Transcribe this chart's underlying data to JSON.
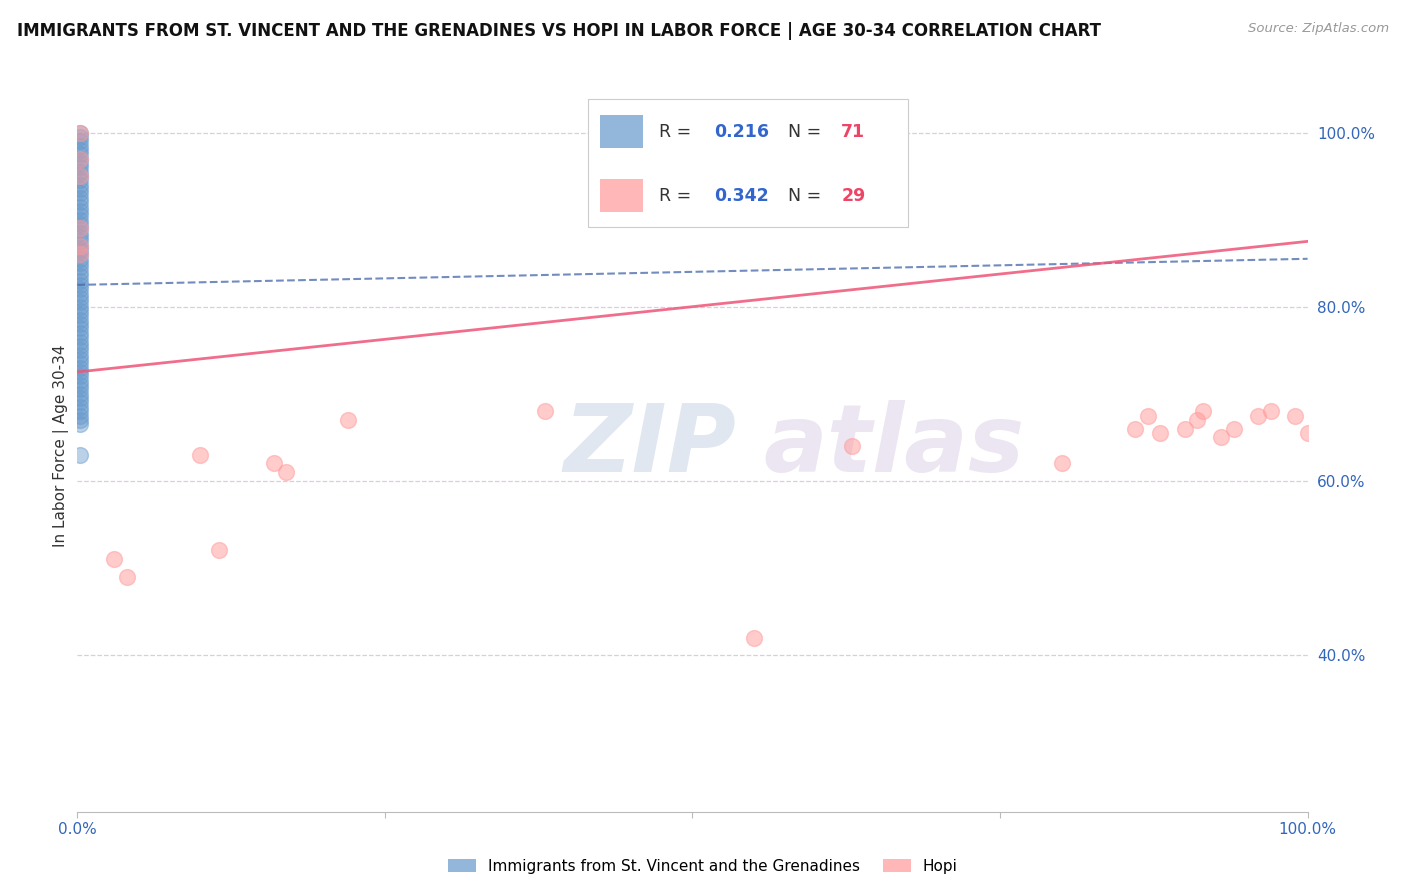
{
  "title": "IMMIGRANTS FROM ST. VINCENT AND THE GRENADINES VS HOPI IN LABOR FORCE | AGE 30-34 CORRELATION CHART",
  "source_text": "Source: ZipAtlas.com",
  "ylabel": "In Labor Force | Age 30-34",
  "xlim": [
    0.0,
    1.0
  ],
  "ylim": [
    0.22,
    1.06
  ],
  "blue_color": "#6699CC",
  "pink_color": "#FF9999",
  "blue_line_color": "#4466AA",
  "pink_line_color": "#EE5577",
  "title_color": "#111111",
  "source_color": "#999999",
  "r_value_color": "#3366CC",
  "n_value_color": "#EE4466",
  "watermark_color_zip": "#AABBDD",
  "watermark_color_atlas": "#CCBBDD",
  "grid_color": "#DDCCDD",
  "blue_scatter_x": [
    0.002,
    0.002,
    0.002,
    0.002,
    0.002,
    0.002,
    0.002,
    0.002,
    0.002,
    0.002,
    0.002,
    0.002,
    0.002,
    0.002,
    0.002,
    0.002,
    0.002,
    0.002,
    0.002,
    0.002,
    0.002,
    0.002,
    0.002,
    0.002,
    0.002,
    0.002,
    0.002,
    0.002,
    0.002,
    0.002,
    0.002,
    0.002,
    0.002,
    0.002,
    0.002,
    0.002,
    0.002,
    0.002,
    0.002,
    0.002,
    0.002,
    0.002,
    0.002,
    0.002,
    0.002,
    0.002,
    0.002,
    0.002,
    0.002,
    0.002,
    0.002,
    0.002,
    0.002,
    0.002,
    0.002,
    0.002,
    0.002,
    0.002,
    0.002,
    0.002,
    0.002,
    0.002,
    0.002,
    0.002,
    0.002,
    0.002,
    0.002,
    0.002,
    0.002
  ],
  "blue_scatter_y": [
    1.0,
    0.995,
    0.99,
    0.985,
    0.98,
    0.975,
    0.97,
    0.965,
    0.96,
    0.955,
    0.95,
    0.945,
    0.94,
    0.935,
    0.93,
    0.925,
    0.92,
    0.915,
    0.91,
    0.905,
    0.9,
    0.895,
    0.89,
    0.885,
    0.88,
    0.875,
    0.87,
    0.865,
    0.86,
    0.855,
    0.85,
    0.845,
    0.84,
    0.835,
    0.83,
    0.825,
    0.82,
    0.815,
    0.81,
    0.805,
    0.8,
    0.795,
    0.79,
    0.785,
    0.78,
    0.775,
    0.77,
    0.765,
    0.76,
    0.755,
    0.75,
    0.745,
    0.74,
    0.735,
    0.73,
    0.725,
    0.72,
    0.715,
    0.71,
    0.705,
    0.7,
    0.695,
    0.69,
    0.685,
    0.68,
    0.675,
    0.67,
    0.665,
    0.63
  ],
  "pink_scatter_x": [
    0.002,
    0.002,
    0.002,
    0.002,
    0.002,
    0.002,
    0.03,
    0.04,
    0.1,
    0.115,
    0.16,
    0.17,
    0.22,
    0.38,
    0.55,
    0.63,
    0.8,
    0.86,
    0.87,
    0.88,
    0.9,
    0.91,
    0.915,
    0.93,
    0.94,
    0.96,
    0.97,
    0.99,
    1.0
  ],
  "pink_scatter_y": [
    1.0,
    0.97,
    0.95,
    0.89,
    0.87,
    0.86,
    0.51,
    0.49,
    0.63,
    0.52,
    0.62,
    0.61,
    0.67,
    0.68,
    0.42,
    0.64,
    0.62,
    0.66,
    0.675,
    0.655,
    0.66,
    0.67,
    0.68,
    0.65,
    0.66,
    0.675,
    0.68,
    0.675,
    0.655
  ],
  "blue_trend_y_start": 0.825,
  "blue_trend_y_end": 0.855,
  "pink_trend_y_start": 0.725,
  "pink_trend_y_end": 0.875,
  "legend_label_blue": "Immigrants from St. Vincent and the Grenadines",
  "legend_label_pink": "Hopi"
}
